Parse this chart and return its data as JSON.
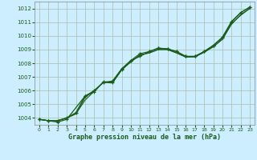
{
  "bg_color": "#cceeff",
  "grid_color": "#aabbaa",
  "line_color": "#1a5c1a",
  "text_color": "#1a5c1a",
  "xlabel": "Graphe pression niveau de la mer (hPa)",
  "ylim": [
    1003.5,
    1012.5
  ],
  "xlim": [
    -0.5,
    23.5
  ],
  "yticks": [
    1004,
    1005,
    1006,
    1007,
    1008,
    1009,
    1010,
    1011,
    1012
  ],
  "xticks": [
    0,
    1,
    2,
    3,
    4,
    5,
    6,
    7,
    8,
    9,
    10,
    11,
    12,
    13,
    14,
    15,
    16,
    17,
    18,
    19,
    20,
    21,
    22,
    23
  ],
  "line1_x": [
    0,
    1,
    2,
    3,
    4,
    5,
    6,
    7,
    8,
    9,
    10,
    11,
    12,
    13,
    14,
    15,
    16,
    17,
    18,
    19,
    20,
    21,
    22,
    23
  ],
  "line1": [
    1003.9,
    1003.8,
    1003.8,
    1004.0,
    1004.4,
    1005.6,
    1006.0,
    1006.6,
    1006.7,
    1007.6,
    1008.2,
    1008.7,
    1008.85,
    1009.1,
    1009.05,
    1008.85,
    1008.5,
    1008.5,
    1008.85,
    1009.3,
    1009.85,
    1011.0,
    1011.7,
    1012.1
  ],
  "line2_x": [
    0,
    1,
    2,
    3,
    4,
    5,
    6,
    7,
    8,
    9,
    10,
    11,
    12,
    13,
    14,
    15,
    16,
    17,
    18,
    19,
    20,
    21,
    22,
    23
  ],
  "line2": [
    1003.9,
    1003.8,
    1003.8,
    1004.0,
    1004.3,
    1005.3,
    1005.95,
    1006.6,
    1006.65,
    1007.55,
    1008.1,
    1008.6,
    1008.75,
    1009.0,
    1009.0,
    1008.75,
    1008.45,
    1008.45,
    1008.8,
    1009.2,
    1009.75,
    1010.85,
    1011.55,
    1012.0
  ],
  "line3_x": [
    0,
    1,
    2,
    3,
    4,
    5,
    6,
    7,
    8,
    9,
    10,
    11,
    12,
    13,
    14,
    15,
    16,
    17,
    18,
    19,
    20,
    21,
    22,
    23
  ],
  "line3": [
    1003.9,
    1003.8,
    1003.8,
    1004.0,
    1004.3,
    1005.5,
    1006.0,
    1006.6,
    1006.55,
    1007.5,
    1008.1,
    1008.6,
    1008.75,
    1009.0,
    1009.0,
    1008.75,
    1008.45,
    1008.5,
    1008.8,
    1009.2,
    1009.75,
    1010.9,
    1011.5,
    1012.0
  ],
  "line4_x": [
    0,
    1,
    2,
    3,
    5,
    6,
    7,
    8,
    9,
    10,
    11,
    12,
    13,
    14,
    15,
    16,
    17,
    18,
    19,
    20,
    21,
    22,
    23
  ],
  "line4": [
    1003.9,
    1003.8,
    1003.7,
    1003.9,
    1005.6,
    1005.9,
    1006.65,
    1006.6,
    1007.55,
    1008.2,
    1008.5,
    1008.85,
    1009.1,
    1009.05,
    1008.85,
    1008.5,
    1008.5,
    1008.85,
    1009.3,
    1009.9,
    1011.05,
    1011.7,
    1012.1
  ]
}
